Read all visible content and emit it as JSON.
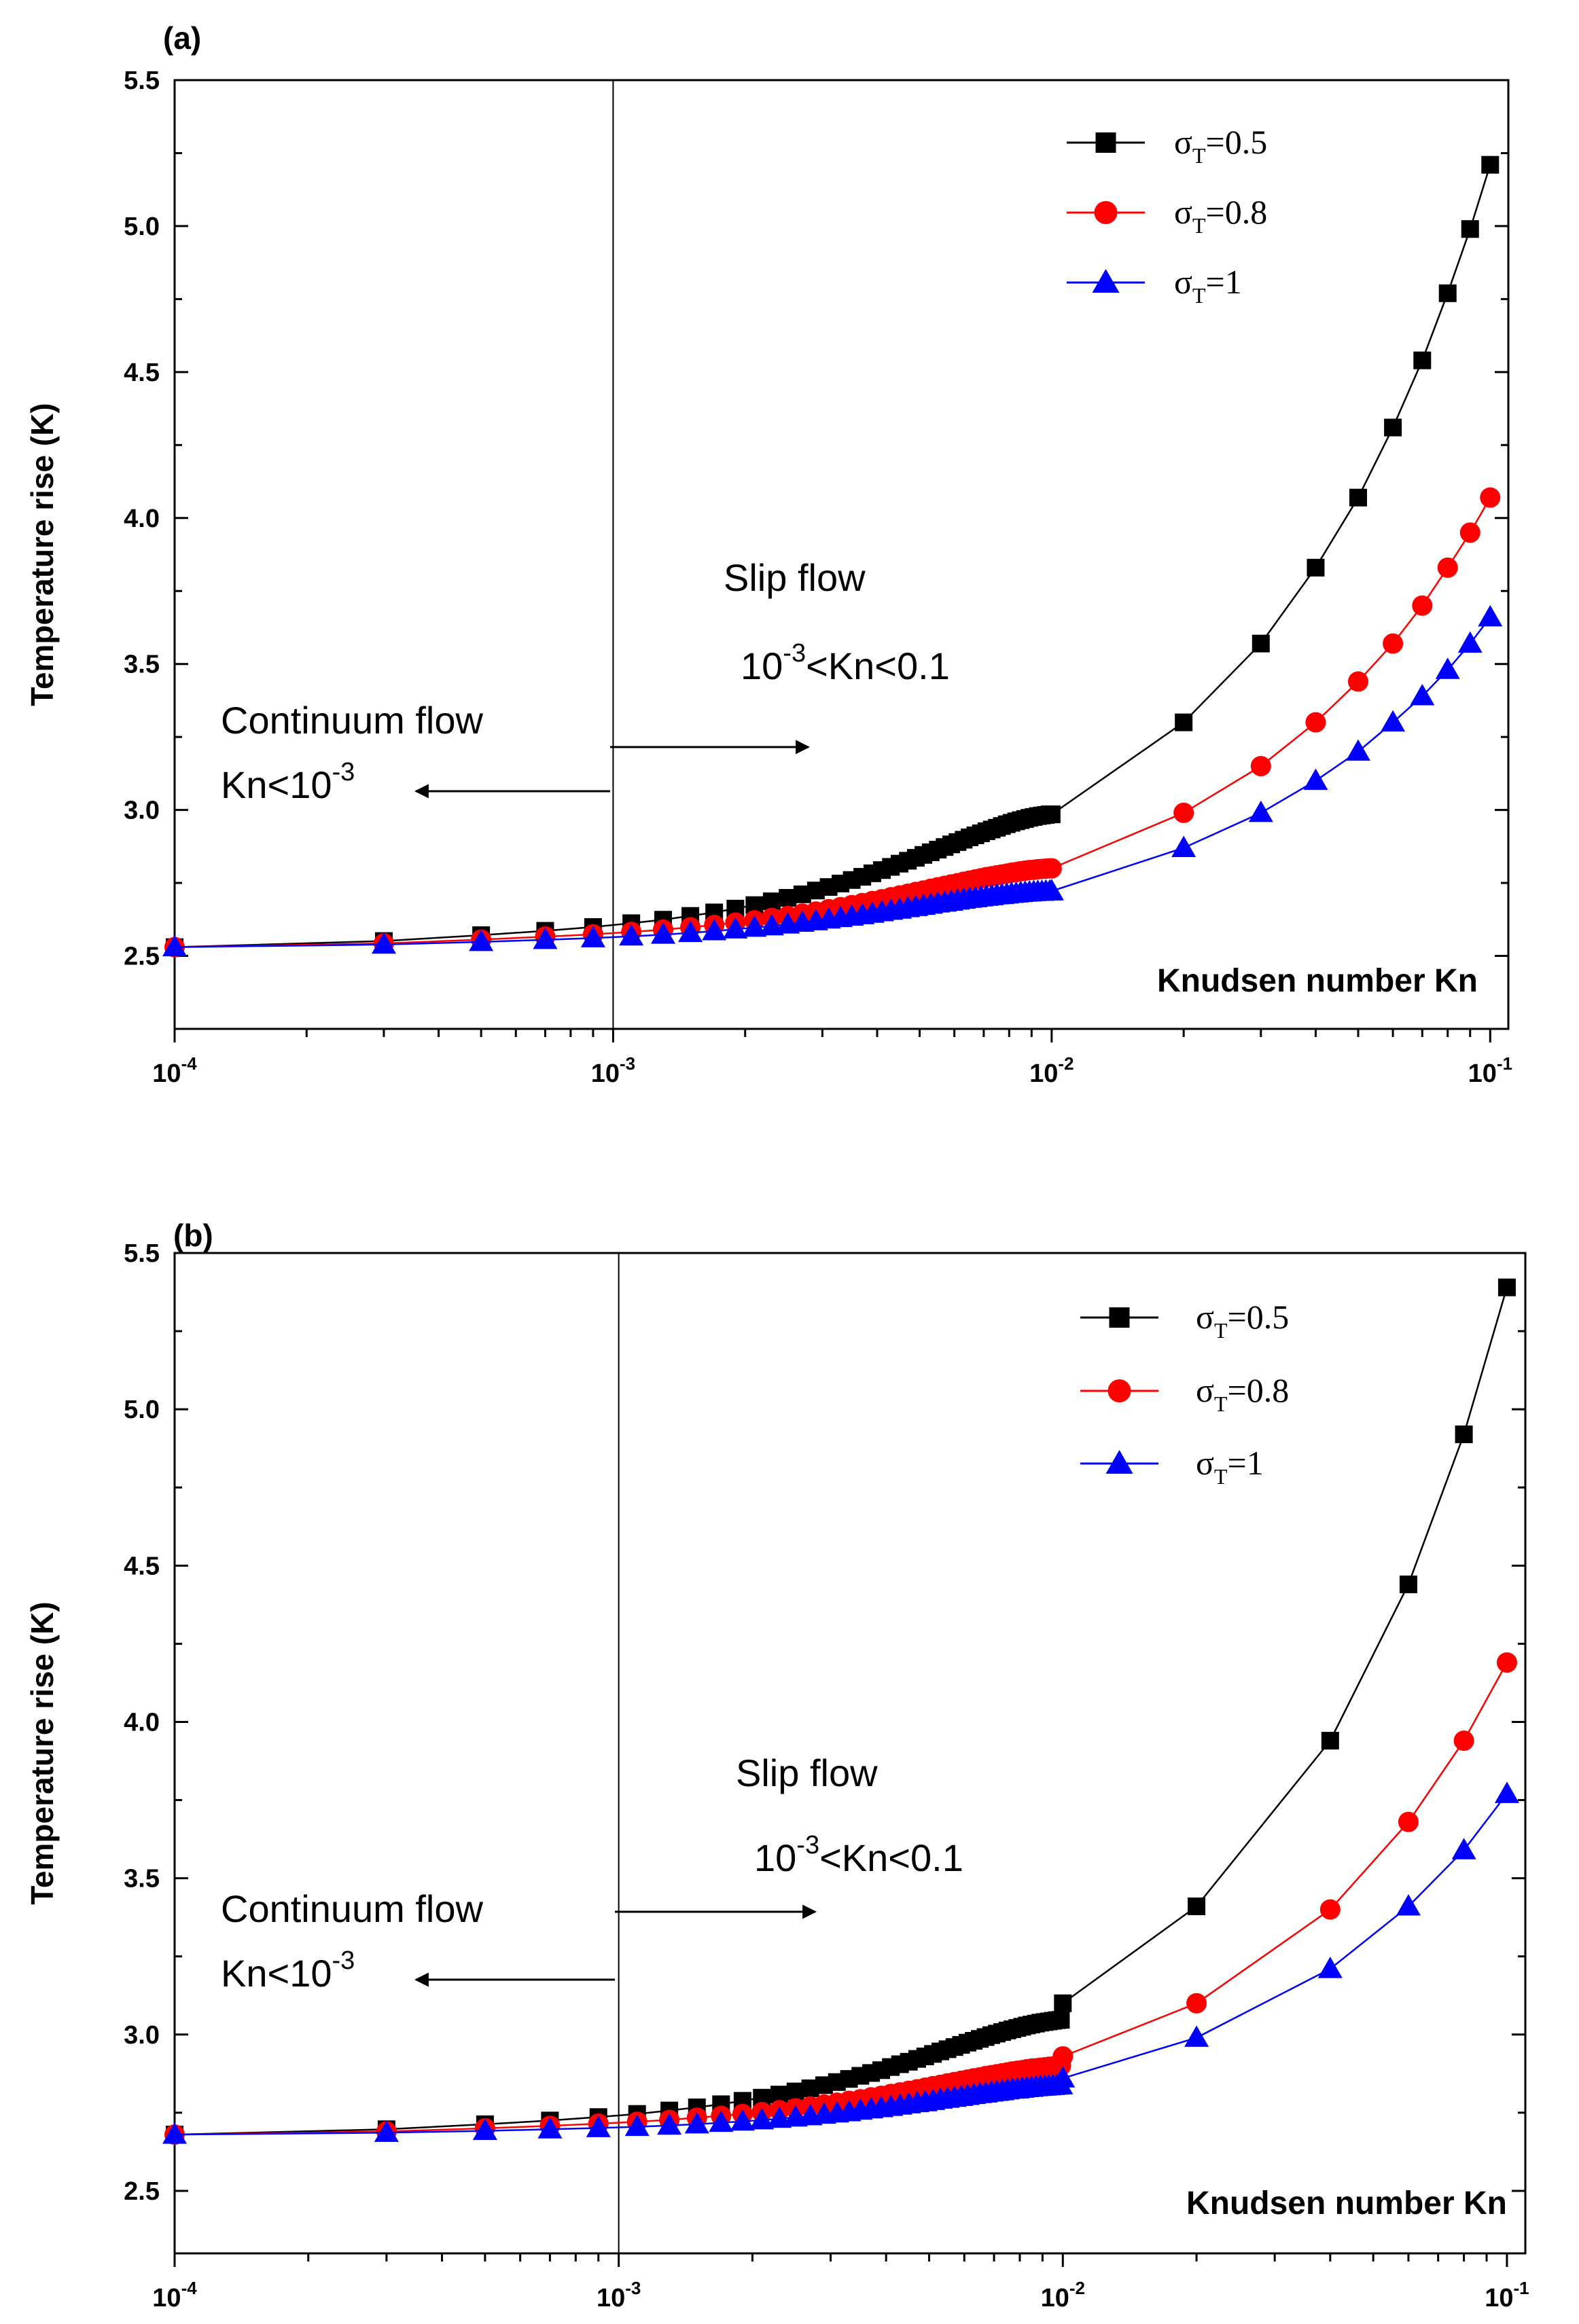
{
  "chart_data": [
    {
      "type": "line",
      "panel_label": "(a)",
      "xscale": "log",
      "xlim": [
        0.0001,
        0.11
      ],
      "ylim": [
        2.25,
        5.5
      ],
      "xlabel": "Knudsen number Kn",
      "ylabel": "Temperature rise (K)",
      "yticks": [
        "2.5",
        "3.0",
        "3.5",
        "4.0",
        "4.5",
        "5.0",
        "5.5"
      ],
      "xticks": [
        {
          "base": "10",
          "exp": "-4"
        },
        {
          "base": "10",
          "exp": "-3"
        },
        {
          "base": "10",
          "exp": "-2"
        },
        {
          "base": "10",
          "exp": "-1"
        }
      ],
      "annotations": {
        "continuum_title": "Continuum flow",
        "continuum_range_base": "Kn<10",
        "continuum_range_exp": "-3",
        "slip_title": "Slip flow",
        "slip_range_pre": "10",
        "slip_range_exp": "-3",
        "slip_range_post": "<Kn<0.1"
      },
      "series": [
        {
          "name": "σT=0.5",
          "sym": "σ",
          "sub": "T",
          "value_text": "=0.5",
          "marker": "square",
          "color": "#000000",
          "x": [
            0.0001,
            0.0003,
            0.0005,
            0.0007,
            0.0009,
            0.0011,
            0.0013,
            0.0015,
            0.0017,
            0.0019,
            0.0021,
            0.0023,
            0.0025,
            0.0027,
            0.0029,
            0.0031,
            0.0033,
            0.0035,
            0.0037,
            0.0039,
            0.0041,
            0.0043,
            0.0045,
            0.0047,
            0.0049,
            0.0051,
            0.0053,
            0.0055,
            0.0057,
            0.0059,
            0.0061,
            0.0063,
            0.0065,
            0.0067,
            0.0069,
            0.0071,
            0.0073,
            0.0075,
            0.0077,
            0.0079,
            0.0081,
            0.0083,
            0.0085,
            0.0087,
            0.0089,
            0.0091,
            0.0093,
            0.0095,
            0.0097,
            0.0099,
            0.01,
            0.02,
            0.03,
            0.04,
            0.05,
            0.06,
            0.07,
            0.08,
            0.09,
            0.1
          ],
          "y": [
            2.53,
            2.551,
            2.571,
            2.586,
            2.599,
            2.612,
            2.624,
            2.637,
            2.649,
            2.662,
            2.674,
            2.687,
            2.699,
            2.711,
            2.724,
            2.736,
            2.748,
            2.76,
            2.771,
            2.783,
            2.794,
            2.805,
            2.816,
            2.826,
            2.836,
            2.846,
            2.855,
            2.864,
            2.873,
            2.882,
            2.89,
            2.898,
            2.906,
            2.913,
            2.92,
            2.927,
            2.933,
            2.939,
            2.945,
            2.951,
            2.956,
            2.961,
            2.965,
            2.969,
            2.973,
            2.976,
            2.979,
            2.981,
            2.983,
            2.985,
            2.985,
            3.3,
            3.57,
            3.83,
            4.07,
            4.31,
            4.54,
            4.77,
            4.99,
            5.21
          ]
        },
        {
          "name": "σT=0.8",
          "sym": "σ",
          "sub": "T",
          "value_text": "=0.8",
          "marker": "circle",
          "color": "#ff0000",
          "x": [
            0.0001,
            0.0003,
            0.0005,
            0.0007,
            0.0009,
            0.0011,
            0.0013,
            0.0015,
            0.0017,
            0.0019,
            0.0021,
            0.0023,
            0.0025,
            0.0027,
            0.0029,
            0.0031,
            0.0033,
            0.0035,
            0.0037,
            0.0039,
            0.0041,
            0.0043,
            0.0045,
            0.0047,
            0.0049,
            0.0051,
            0.0053,
            0.0055,
            0.0057,
            0.0059,
            0.0061,
            0.0063,
            0.0065,
            0.0067,
            0.0069,
            0.0071,
            0.0073,
            0.0075,
            0.0077,
            0.0079,
            0.0081,
            0.0083,
            0.0085,
            0.0087,
            0.0089,
            0.0091,
            0.0093,
            0.0095,
            0.0097,
            0.0099,
            0.01,
            0.02,
            0.03,
            0.04,
            0.05,
            0.06,
            0.07,
            0.08,
            0.09,
            0.1
          ],
          "y": [
            2.53,
            2.543,
            2.556,
            2.566,
            2.574,
            2.582,
            2.59,
            2.598,
            2.606,
            2.614,
            2.622,
            2.63,
            2.637,
            2.645,
            2.652,
            2.66,
            2.667,
            2.674,
            2.681,
            2.688,
            2.694,
            2.701,
            2.707,
            2.713,
            2.719,
            2.724,
            2.73,
            2.735,
            2.74,
            2.745,
            2.749,
            2.754,
            2.758,
            2.762,
            2.766,
            2.77,
            2.773,
            2.776,
            2.779,
            2.782,
            2.785,
            2.787,
            2.79,
            2.792,
            2.794,
            2.795,
            2.797,
            2.798,
            2.799,
            2.8,
            2.8,
            2.99,
            3.15,
            3.3,
            3.44,
            3.57,
            3.7,
            3.83,
            3.95,
            4.07
          ]
        },
        {
          "name": "σT=1",
          "sym": "σ",
          "sub": "T",
          "value_text": "=1",
          "marker": "triangle",
          "color": "#0000ff",
          "x": [
            0.0001,
            0.0003,
            0.0005,
            0.0007,
            0.0009,
            0.0011,
            0.0013,
            0.0015,
            0.0017,
            0.0019,
            0.0021,
            0.0023,
            0.0025,
            0.0027,
            0.0029,
            0.0031,
            0.0033,
            0.0035,
            0.0037,
            0.0039,
            0.0041,
            0.0043,
            0.0045,
            0.0047,
            0.0049,
            0.0051,
            0.0053,
            0.0055,
            0.0057,
            0.0059,
            0.0061,
            0.0063,
            0.0065,
            0.0067,
            0.0069,
            0.0071,
            0.0073,
            0.0075,
            0.0077,
            0.0079,
            0.0081,
            0.0083,
            0.0085,
            0.0087,
            0.0089,
            0.0091,
            0.0093,
            0.0095,
            0.0097,
            0.0099,
            0.01,
            0.02,
            0.03,
            0.04,
            0.05,
            0.06,
            0.07,
            0.08,
            0.09,
            0.1
          ],
          "y": [
            2.53,
            2.539,
            2.548,
            2.555,
            2.561,
            2.567,
            2.573,
            2.579,
            2.585,
            2.591,
            2.597,
            2.602,
            2.608,
            2.614,
            2.619,
            2.625,
            2.63,
            2.635,
            2.64,
            2.645,
            2.65,
            2.655,
            2.659,
            2.664,
            2.668,
            2.672,
            2.676,
            2.68,
            2.683,
            2.686,
            2.69,
            2.693,
            2.696,
            2.698,
            2.701,
            2.703,
            2.705,
            2.708,
            2.709,
            2.711,
            2.713,
            2.714,
            2.716,
            2.717,
            2.718,
            2.719,
            2.72,
            2.72,
            2.721,
            2.721,
            2.722,
            2.87,
            2.99,
            3.1,
            3.2,
            3.3,
            3.39,
            3.48,
            3.57,
            3.66
          ]
        }
      ]
    },
    {
      "type": "line",
      "panel_label": "(b)",
      "xscale": "log",
      "xlim": [
        0.0001,
        0.11
      ],
      "ylim": [
        2.3,
        5.5
      ],
      "xlabel": "Knudsen number Kn",
      "ylabel": "Temperature rise (K)",
      "yticks": [
        "2.5",
        "3.0",
        "3.5",
        "4.0",
        "4.5",
        "5.0",
        "5.5"
      ],
      "xticks": [
        {
          "base": "10",
          "exp": "-4"
        },
        {
          "base": "10",
          "exp": "-3"
        },
        {
          "base": "10",
          "exp": "-2"
        },
        {
          "base": "10",
          "exp": "-1"
        }
      ],
      "annotations": {
        "continuum_title": "Continuum flow",
        "continuum_range_base": "Kn<10",
        "continuum_range_exp": "-3",
        "slip_title": "Slip flow",
        "slip_range_pre": "10",
        "slip_range_exp": "-3",
        "slip_range_post": "<Kn<0.1"
      },
      "series": [
        {
          "name": "σT=0.5",
          "sym": "σ",
          "sub": "T",
          "value_text": "=0.5",
          "marker": "square",
          "color": "#000000",
          "x": [
            0.0001,
            0.0003,
            0.0005,
            0.0007,
            0.0009,
            0.0011,
            0.0013,
            0.0015,
            0.0017,
            0.0019,
            0.0021,
            0.0023,
            0.0025,
            0.0027,
            0.0029,
            0.0031,
            0.0033,
            0.0035,
            0.0037,
            0.0039,
            0.0041,
            0.0043,
            0.0045,
            0.0047,
            0.0049,
            0.0051,
            0.0053,
            0.0055,
            0.0057,
            0.0059,
            0.0061,
            0.0063,
            0.0065,
            0.0067,
            0.0069,
            0.0071,
            0.0073,
            0.0075,
            0.0077,
            0.0079,
            0.0081,
            0.0083,
            0.0085,
            0.0087,
            0.0089,
            0.0091,
            0.0093,
            0.0095,
            0.0097,
            0.0099,
            0.01,
            0.02,
            0.04,
            0.06,
            0.08,
            0.1
          ],
          "y": [
            2.68,
            2.697,
            2.713,
            2.725,
            2.736,
            2.746,
            2.757,
            2.767,
            2.777,
            2.788,
            2.798,
            2.808,
            2.818,
            2.828,
            2.838,
            2.848,
            2.858,
            2.868,
            2.877,
            2.886,
            2.896,
            2.905,
            2.913,
            2.922,
            2.93,
            2.938,
            2.946,
            2.953,
            2.96,
            2.967,
            2.974,
            2.98,
            2.986,
            2.992,
            2.998,
            3.003,
            3.008,
            3.013,
            3.017,
            3.021,
            3.025,
            3.029,
            3.032,
            3.035,
            3.038,
            3.04,
            3.042,
            3.044,
            3.046,
            3.047,
            3.1,
            3.41,
            3.94,
            4.44,
            4.92,
            5.39
          ]
        },
        {
          "name": "σT=0.8",
          "sym": "σ",
          "sub": "T",
          "value_text": "=0.8",
          "marker": "circle",
          "color": "#ff0000",
          "x": [
            0.0001,
            0.0003,
            0.0005,
            0.0007,
            0.0009,
            0.0011,
            0.0013,
            0.0015,
            0.0017,
            0.0019,
            0.0021,
            0.0023,
            0.0025,
            0.0027,
            0.0029,
            0.0031,
            0.0033,
            0.0035,
            0.0037,
            0.0039,
            0.0041,
            0.0043,
            0.0045,
            0.0047,
            0.0049,
            0.0051,
            0.0053,
            0.0055,
            0.0057,
            0.0059,
            0.0061,
            0.0063,
            0.0065,
            0.0067,
            0.0069,
            0.0071,
            0.0073,
            0.0075,
            0.0077,
            0.0079,
            0.0081,
            0.0083,
            0.0085,
            0.0087,
            0.0089,
            0.0091,
            0.0093,
            0.0095,
            0.0097,
            0.0099,
            0.01,
            0.02,
            0.04,
            0.06,
            0.08,
            0.1
          ],
          "y": [
            2.68,
            2.69,
            2.7,
            2.708,
            2.715,
            2.721,
            2.727,
            2.734,
            2.74,
            2.746,
            2.752,
            2.758,
            2.764,
            2.77,
            2.776,
            2.782,
            2.788,
            2.793,
            2.799,
            2.804,
            2.81,
            2.815,
            2.82,
            2.825,
            2.83,
            2.835,
            2.839,
            2.844,
            2.848,
            2.852,
            2.856,
            2.86,
            2.863,
            2.867,
            2.87,
            2.873,
            2.876,
            2.879,
            2.882,
            2.884,
            2.886,
            2.889,
            2.891,
            2.892,
            2.894,
            2.895,
            2.897,
            2.898,
            2.899,
            2.9,
            2.93,
            3.1,
            3.4,
            3.68,
            3.94,
            4.19
          ]
        },
        {
          "name": "σT=1",
          "sym": "σ",
          "sub": "T",
          "value_text": "=1",
          "marker": "triangle",
          "color": "#0000ff",
          "x": [
            0.0001,
            0.0003,
            0.0005,
            0.0007,
            0.0009,
            0.0011,
            0.0013,
            0.0015,
            0.0017,
            0.0019,
            0.0021,
            0.0023,
            0.0025,
            0.0027,
            0.0029,
            0.0031,
            0.0033,
            0.0035,
            0.0037,
            0.0039,
            0.0041,
            0.0043,
            0.0045,
            0.0047,
            0.0049,
            0.0051,
            0.0053,
            0.0055,
            0.0057,
            0.0059,
            0.0061,
            0.0063,
            0.0065,
            0.0067,
            0.0069,
            0.0071,
            0.0073,
            0.0075,
            0.0077,
            0.0079,
            0.0081,
            0.0083,
            0.0085,
            0.0087,
            0.0089,
            0.0091,
            0.0093,
            0.0095,
            0.0097,
            0.0099,
            0.01,
            0.02,
            0.04,
            0.06,
            0.08,
            0.1
          ],
          "y": [
            2.68,
            2.686,
            2.692,
            2.697,
            2.701,
            2.705,
            2.709,
            2.713,
            2.718,
            2.722,
            2.726,
            2.731,
            2.735,
            2.739,
            2.744,
            2.748,
            2.752,
            2.757,
            2.761,
            2.765,
            2.769,
            2.773,
            2.777,
            2.781,
            2.784,
            2.788,
            2.792,
            2.795,
            2.798,
            2.801,
            2.804,
            2.807,
            2.81,
            2.812,
            2.815,
            2.817,
            2.819,
            2.822,
            2.824,
            2.825,
            2.827,
            2.829,
            2.83,
            2.832,
            2.833,
            2.834,
            2.835,
            2.836,
            2.837,
            2.838,
            2.86,
            2.99,
            3.21,
            3.41,
            3.59,
            3.77
          ]
        }
      ]
    }
  ]
}
